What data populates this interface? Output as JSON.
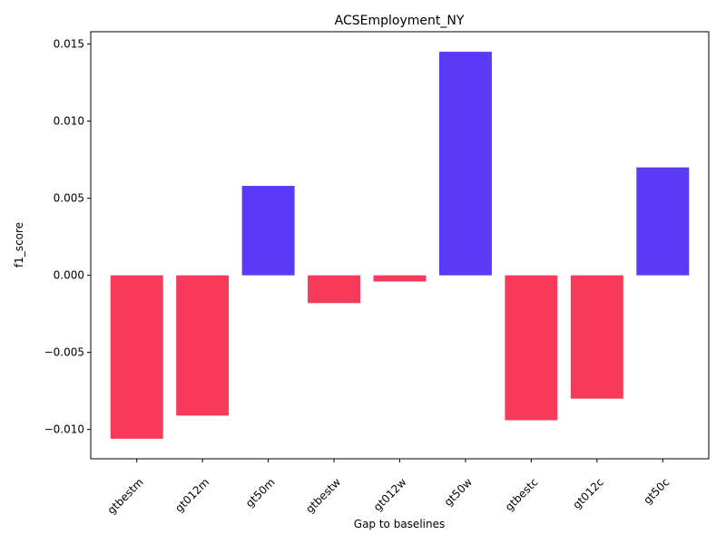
{
  "chart_data": {
    "type": "bar",
    "title": "ACSEmployment_NY",
    "xlabel": "Gap to baselines",
    "ylabel": "f1_score",
    "categories": [
      "gtbestm",
      "gt012m",
      "gt50m",
      "gtbestw",
      "gt012w",
      "gt50w",
      "gtbestc",
      "gt012c",
      "gt50c"
    ],
    "values": [
      -0.0106,
      -0.0091,
      0.0058,
      -0.0018,
      -0.0004,
      0.0145,
      -0.0094,
      -0.008,
      0.007
    ],
    "ylim": [
      -0.0119,
      0.0158
    ],
    "yticks": [
      -0.01,
      -0.005,
      0.0,
      0.005,
      0.01,
      0.015
    ],
    "ytick_labels": [
      "−0.010",
      "−0.005",
      "0.000",
      "0.005",
      "0.010",
      "0.015"
    ],
    "grid": false,
    "colors": {
      "positive": "#5a3af7",
      "negative": "#f73a5a"
    }
  }
}
